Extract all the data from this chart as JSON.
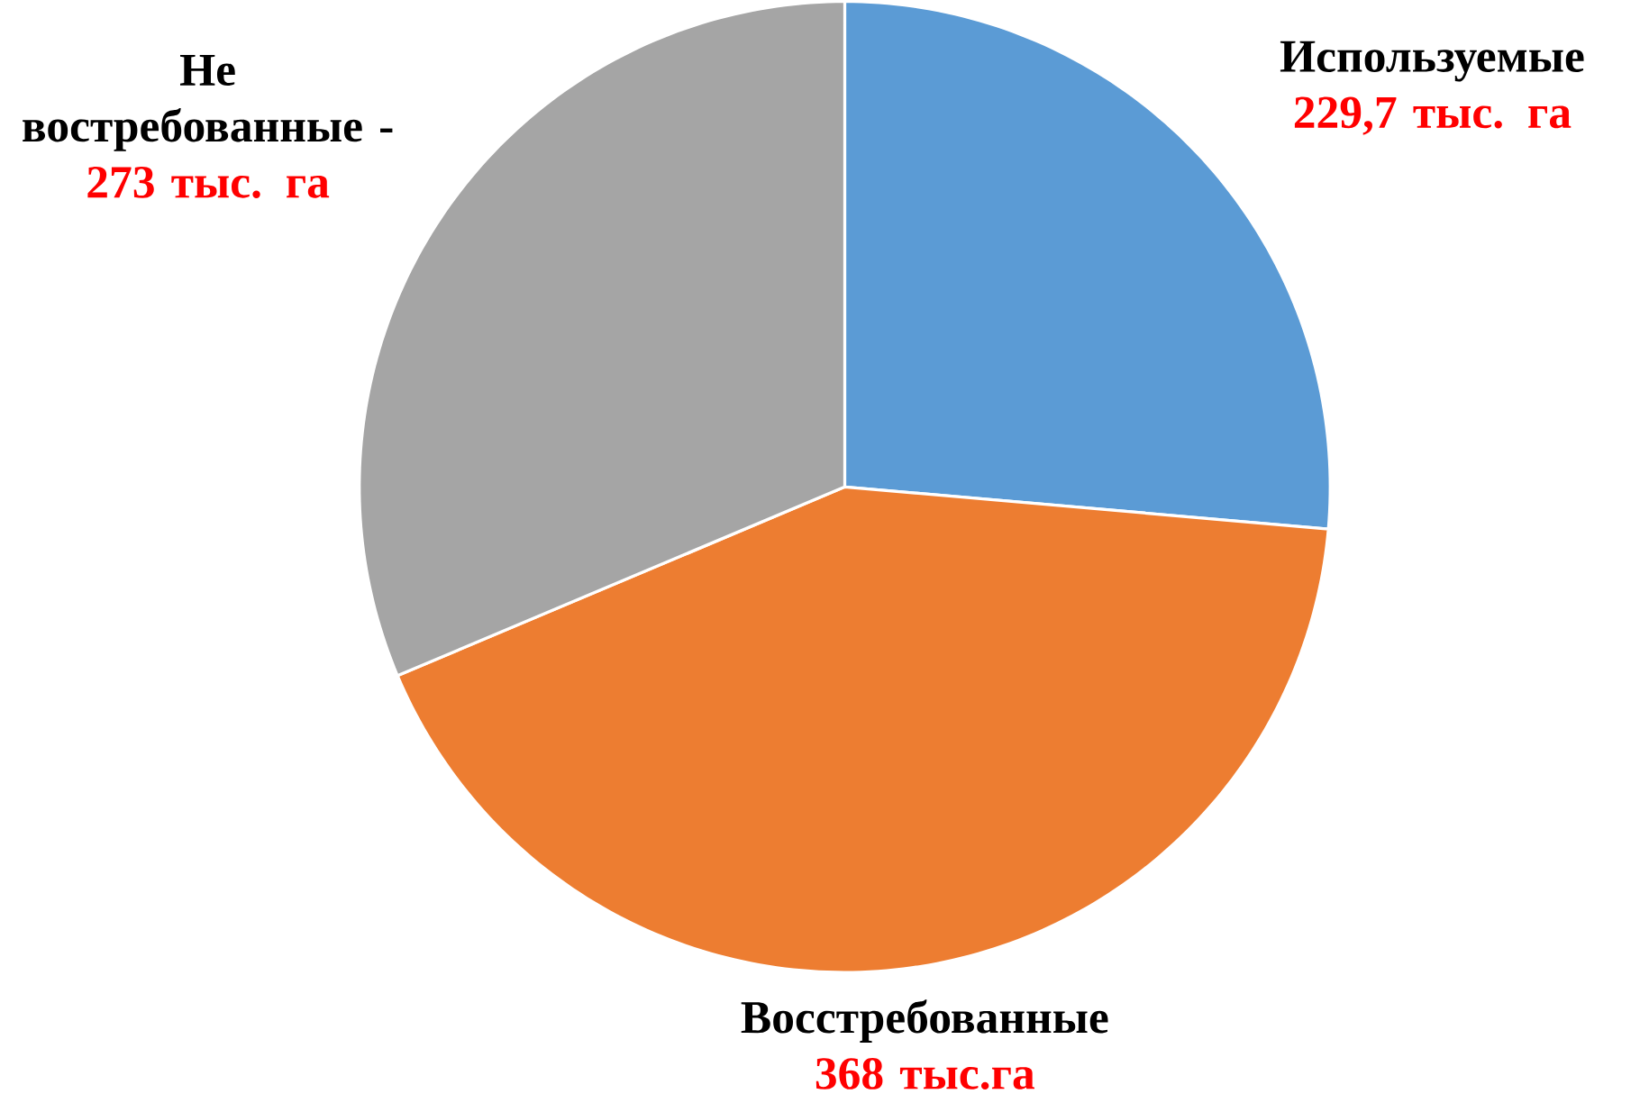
{
  "chart_data": {
    "type": "pie",
    "categories": [
      "Используемые",
      "Восстребованные",
      "Не востребованные -"
    ],
    "values": [
      229.7,
      368,
      273
    ],
    "colors": [
      "#5b9bd5",
      "#ed7d31",
      "#a5a5a5"
    ],
    "value_labels": [
      "229,7 тыс. га",
      "368 тыс.га",
      "273 тыс. га"
    ]
  }
}
